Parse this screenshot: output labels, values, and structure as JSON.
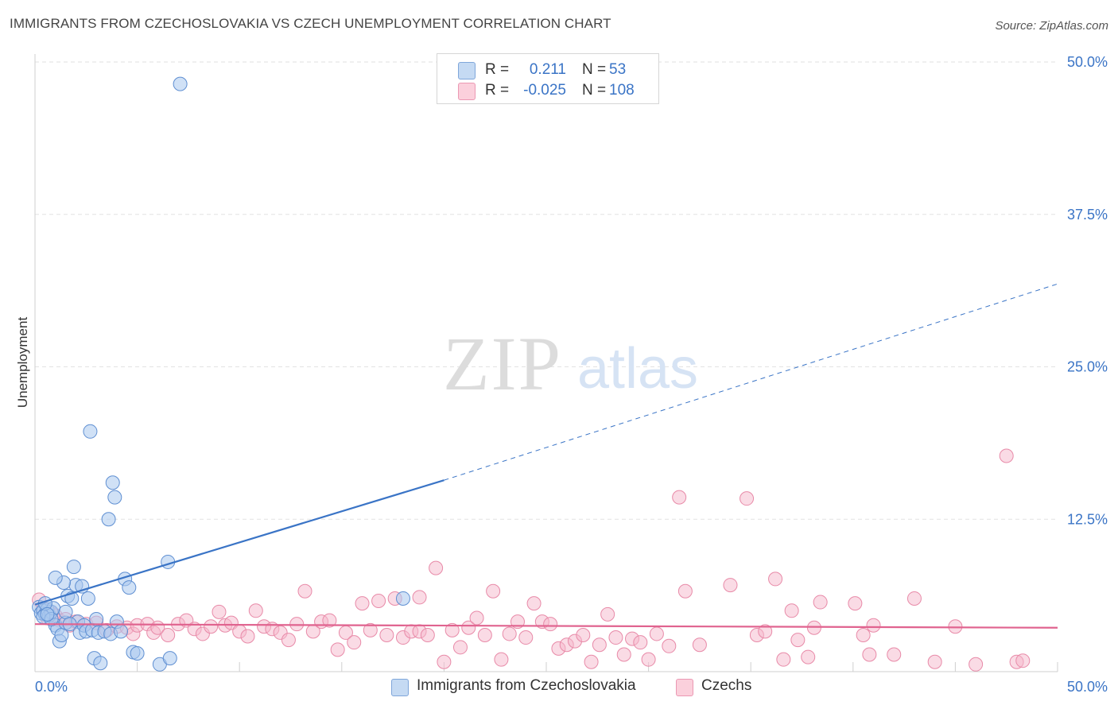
{
  "title": "IMMIGRANTS FROM CZECHOSLOVAKIA VS CZECH UNEMPLOYMENT CORRELATION CHART",
  "source": "Source: ZipAtlas.com",
  "watermark": {
    "zip": "ZIP",
    "atlas": "atlas"
  },
  "colors": {
    "blue": "#3a74c6",
    "blue_fill": "#a9c8ef",
    "pink": "#e0638f",
    "pink_fill": "#f5b8cb",
    "grid": "#e2e2e2",
    "axis": "#cfcfcf"
  },
  "legend": {
    "rows": [
      {
        "r_label": "R =",
        "r_value": "0.211",
        "n_label": "N =",
        "n_value": "53"
      },
      {
        "r_label": "R =",
        "r_value": "-0.025",
        "n_label": "N =",
        "n_value": "108"
      }
    ]
  },
  "chart_data": {
    "type": "scatter",
    "title": "IMMIGRANTS FROM CZECHOSLOVAKIA VS CZECH UNEMPLOYMENT CORRELATION CHART",
    "xlabel": "",
    "ylabel": "Unemployment",
    "xlim": [
      0,
      50
    ],
    "ylim": [
      0,
      50
    ],
    "x_tick_labels": [
      "0.0%",
      "50.0%"
    ],
    "y_ticks": [
      12.5,
      25.0,
      37.5,
      50.0
    ],
    "y_tick_labels": [
      "12.5%",
      "25.0%",
      "37.5%",
      "50.0%"
    ],
    "grid": true,
    "series": [
      {
        "name": "Immigrants from Czechoslovakia",
        "color": "blue",
        "trend": {
          "x0": 0,
          "y0": 5.5,
          "x1": 20,
          "y1": 15.7,
          "dashed_to_x": 50,
          "dashed_to_y": 31.8
        },
        "points": [
          [
            0.2,
            5.3
          ],
          [
            0.3,
            4.8
          ],
          [
            0.4,
            5.0
          ],
          [
            0.5,
            4.7
          ],
          [
            0.6,
            5.1
          ],
          [
            0.7,
            4.6
          ],
          [
            0.8,
            4.9
          ],
          [
            0.9,
            5.2
          ],
          [
            0.4,
            4.5
          ],
          [
            0.5,
            5.6
          ],
          [
            1.0,
            3.8
          ],
          [
            1.1,
            3.5
          ],
          [
            1.2,
            2.5
          ],
          [
            1.3,
            3.0
          ],
          [
            1.5,
            4.0
          ],
          [
            1.6,
            6.2
          ],
          [
            1.8,
            6.0
          ],
          [
            1.9,
            8.6
          ],
          [
            2.0,
            7.1
          ],
          [
            2.1,
            4.1
          ],
          [
            2.2,
            3.2
          ],
          [
            2.3,
            7.0
          ],
          [
            2.4,
            3.8
          ],
          [
            2.5,
            3.3
          ],
          [
            2.6,
            6.0
          ],
          [
            2.7,
            19.7
          ],
          [
            2.8,
            3.4
          ],
          [
            2.9,
            1.1
          ],
          [
            3.0,
            4.3
          ],
          [
            3.1,
            3.2
          ],
          [
            3.2,
            0.7
          ],
          [
            3.4,
            3.3
          ],
          [
            3.6,
            12.5
          ],
          [
            3.7,
            3.1
          ],
          [
            3.8,
            15.5
          ],
          [
            3.9,
            14.3
          ],
          [
            4.0,
            4.1
          ],
          [
            4.2,
            3.3
          ],
          [
            4.4,
            7.6
          ],
          [
            4.6,
            6.9
          ],
          [
            4.8,
            1.6
          ],
          [
            5.0,
            1.5
          ],
          [
            1.4,
            7.3
          ],
          [
            1.0,
            7.7
          ],
          [
            1.5,
            4.9
          ],
          [
            6.5,
            9.0
          ],
          [
            7.1,
            48.2
          ],
          [
            6.1,
            0.6
          ],
          [
            6.6,
            1.1
          ],
          [
            18.0,
            6.0
          ],
          [
            0.8,
            4.3
          ],
          [
            1.7,
            3.9
          ],
          [
            0.6,
            4.7
          ]
        ]
      },
      {
        "name": "Czechs",
        "color": "pink",
        "trend": {
          "x0": 0,
          "y0": 3.9,
          "x1": 50,
          "y1": 3.6
        },
        "points": [
          [
            0.2,
            5.9
          ],
          [
            0.4,
            5.2
          ],
          [
            0.6,
            4.4
          ],
          [
            0.8,
            4.8
          ],
          [
            1.0,
            4.6
          ],
          [
            1.2,
            4.2
          ],
          [
            1.5,
            4.3
          ],
          [
            1.7,
            3.8
          ],
          [
            2.0,
            4.1
          ],
          [
            2.5,
            3.9
          ],
          [
            3.0,
            4.0
          ],
          [
            3.5,
            3.4
          ],
          [
            4.0,
            3.7
          ],
          [
            4.5,
            3.6
          ],
          [
            4.8,
            3.1
          ],
          [
            5.0,
            3.8
          ],
          [
            5.5,
            3.9
          ],
          [
            5.8,
            3.2
          ],
          [
            6.0,
            3.6
          ],
          [
            6.5,
            3.0
          ],
          [
            7.0,
            3.9
          ],
          [
            7.4,
            4.2
          ],
          [
            7.8,
            3.5
          ],
          [
            8.2,
            3.1
          ],
          [
            8.6,
            3.7
          ],
          [
            9.0,
            4.9
          ],
          [
            9.3,
            3.8
          ],
          [
            9.6,
            4.0
          ],
          [
            10.0,
            3.3
          ],
          [
            10.4,
            2.9
          ],
          [
            10.8,
            5.0
          ],
          [
            11.2,
            3.7
          ],
          [
            11.6,
            3.5
          ],
          [
            12.0,
            3.2
          ],
          [
            12.4,
            2.6
          ],
          [
            12.8,
            3.9
          ],
          [
            13.2,
            6.6
          ],
          [
            13.6,
            3.3
          ],
          [
            14.0,
            4.1
          ],
          [
            14.4,
            4.2
          ],
          [
            14.8,
            1.8
          ],
          [
            15.2,
            3.2
          ],
          [
            15.6,
            2.4
          ],
          [
            16.0,
            5.6
          ],
          [
            16.4,
            3.4
          ],
          [
            16.8,
            5.8
          ],
          [
            17.2,
            3.0
          ],
          [
            17.6,
            6.0
          ],
          [
            18.0,
            2.8
          ],
          [
            18.4,
            3.3
          ],
          [
            18.8,
            3.3
          ],
          [
            19.2,
            3.0
          ],
          [
            19.6,
            8.5
          ],
          [
            20.0,
            0.8
          ],
          [
            20.4,
            3.4
          ],
          [
            20.8,
            2.0
          ],
          [
            21.2,
            3.6
          ],
          [
            21.6,
            4.4
          ],
          [
            22.0,
            3.0
          ],
          [
            22.4,
            6.6
          ],
          [
            22.8,
            1.0
          ],
          [
            23.2,
            3.1
          ],
          [
            23.6,
            4.1
          ],
          [
            24.0,
            2.8
          ],
          [
            24.4,
            5.6
          ],
          [
            24.8,
            4.1
          ],
          [
            25.2,
            3.9
          ],
          [
            25.6,
            1.9
          ],
          [
            26.0,
            2.2
          ],
          [
            26.4,
            2.5
          ],
          [
            26.8,
            3.0
          ],
          [
            27.2,
            0.8
          ],
          [
            27.6,
            2.2
          ],
          [
            28.0,
            4.7
          ],
          [
            28.4,
            2.8
          ],
          [
            28.8,
            1.4
          ],
          [
            29.2,
            2.7
          ],
          [
            29.6,
            2.4
          ],
          [
            30.0,
            1.0
          ],
          [
            30.4,
            3.1
          ],
          [
            31.0,
            2.1
          ],
          [
            31.5,
            14.3
          ],
          [
            31.8,
            6.6
          ],
          [
            32.5,
            2.2
          ],
          [
            34.0,
            7.1
          ],
          [
            34.8,
            14.2
          ],
          [
            35.3,
            3.0
          ],
          [
            35.7,
            3.3
          ],
          [
            36.2,
            7.6
          ],
          [
            36.6,
            1.0
          ],
          [
            37.0,
            5.0
          ],
          [
            37.3,
            2.6
          ],
          [
            37.8,
            1.2
          ],
          [
            38.1,
            3.6
          ],
          [
            38.4,
            5.7
          ],
          [
            40.1,
            5.6
          ],
          [
            40.5,
            3.0
          ],
          [
            40.8,
            1.4
          ],
          [
            41.0,
            3.8
          ],
          [
            42.0,
            1.4
          ],
          [
            43.0,
            6.0
          ],
          [
            44.0,
            0.8
          ],
          [
            45.0,
            3.7
          ],
          [
            46.0,
            0.6
          ],
          [
            47.5,
            17.7
          ],
          [
            48.0,
            0.8
          ],
          [
            48.3,
            0.9
          ],
          [
            18.8,
            6.1
          ]
        ]
      }
    ]
  },
  "bottom_legend": [
    {
      "label": "Immigrants from Czechoslovakia"
    },
    {
      "label": "Czechs"
    }
  ]
}
